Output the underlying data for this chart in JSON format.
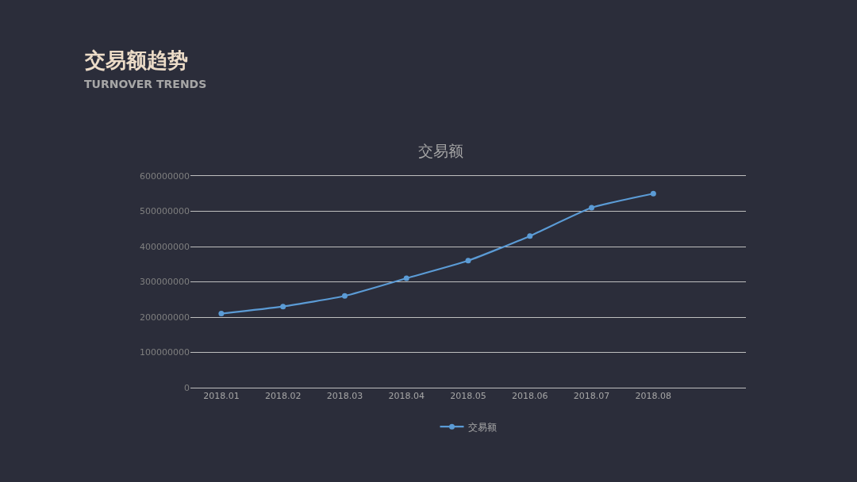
{
  "chart_data": {
    "type": "line",
    "title": "交易额",
    "annotations": [
      "交易额趋势",
      "TURNOVER TRENDS"
    ],
    "categories": [
      "2018.01",
      "2018.02",
      "2018.03",
      "2018.04",
      "2018.05",
      "2018.06",
      "2018.07",
      "2018.08",
      null
    ],
    "series": [
      {
        "name": "交易额",
        "color": "#5b9bd5",
        "values": [
          210000000,
          230000000,
          260000000,
          310000000,
          360000000,
          430000000,
          510000000,
          550000000,
          null
        ]
      }
    ],
    "ylim": [
      0,
      600000000
    ],
    "yticks": [
      0,
      100000000,
      200000000,
      300000000,
      400000000,
      500000000,
      600000000
    ],
    "grid": "y",
    "legend": "bottom",
    "marker": "circle",
    "line_style": "solid"
  }
}
